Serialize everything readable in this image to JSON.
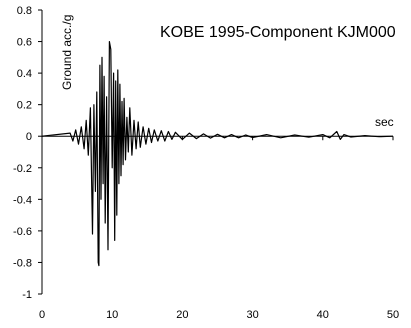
{
  "chart_data": {
    "type": "line",
    "title": "KOBE 1995-Component  KJM000",
    "xlabel": "sec",
    "ylabel": "Ground acc./g",
    "xlim": [
      0,
      50
    ],
    "ylim": [
      -1,
      0.8
    ],
    "x_ticks": [
      "0",
      "10",
      "20",
      "30",
      "40",
      "50"
    ],
    "y_ticks": [
      "0.8",
      "0.6",
      "0.4",
      "0.2",
      "0",
      "-0.2",
      "-0.4",
      "-0.6",
      "-0.8",
      "-1"
    ],
    "x_tick_values": [
      0,
      10,
      20,
      30,
      40,
      50
    ],
    "y_tick_values": [
      0.8,
      0.6,
      0.4,
      0.2,
      0,
      -0.2,
      -0.4,
      -0.6,
      -0.8,
      -1
    ],
    "grid": false,
    "legend": "none",
    "series": [
      {
        "color": "#000000",
        "x": [
          0,
          4.0,
          4.4,
          4.8,
          5.2,
          5.6,
          6.0,
          6.3,
          6.6,
          6.9,
          7.2,
          7.4,
          7.6,
          7.8,
          8.0,
          8.1,
          8.25,
          8.4,
          8.55,
          8.7,
          8.85,
          9.0,
          9.2,
          9.4,
          9.6,
          9.8,
          10.0,
          10.2,
          10.35,
          10.5,
          10.65,
          10.8,
          10.95,
          11.1,
          11.25,
          11.4,
          11.55,
          11.7,
          11.9,
          12.1,
          12.3,
          12.5,
          12.8,
          13.1,
          13.4,
          13.7,
          14.0,
          14.4,
          14.8,
          15.2,
          15.6,
          16.0,
          16.5,
          17.0,
          17.5,
          18.0,
          18.5,
          19.0,
          20.0,
          21.0,
          22.0,
          23.0,
          24.0,
          25.0,
          26.0,
          27.0,
          28.0,
          29.0,
          30.0,
          32.0,
          34.0,
          36.0,
          38.0,
          40.0,
          41.0,
          42.0,
          42.5,
          43.0,
          44.0,
          46.0,
          48.0,
          50.0
        ],
        "y": [
          0,
          0.02,
          -0.03,
          0.04,
          -0.05,
          0.06,
          -0.08,
          0.1,
          -0.12,
          0.18,
          -0.62,
          0.2,
          -0.35,
          0.28,
          -0.8,
          -0.82,
          0.45,
          -0.4,
          0.5,
          -0.3,
          0.38,
          -0.55,
          0.25,
          -0.72,
          0.6,
          0.55,
          -0.2,
          0.4,
          -0.66,
          0.35,
          -0.5,
          0.42,
          -0.3,
          0.33,
          -0.25,
          0.22,
          -0.18,
          0.24,
          -0.15,
          0.12,
          -0.1,
          0.18,
          -0.12,
          0.1,
          -0.08,
          0.09,
          -0.07,
          0.06,
          -0.05,
          0.05,
          -0.04,
          0.04,
          -0.03,
          0.035,
          -0.03,
          0.03,
          -0.02,
          0.025,
          -0.02,
          0.02,
          -0.015,
          0.015,
          -0.012,
          0.012,
          -0.01,
          0.01,
          -0.01,
          0.008,
          -0.008,
          0.01,
          -0.01,
          0.008,
          -0.006,
          0.01,
          -0.01,
          0.03,
          -0.02,
          0.01,
          -0.005,
          0.004,
          -0.003,
          0
        ]
      }
    ]
  }
}
